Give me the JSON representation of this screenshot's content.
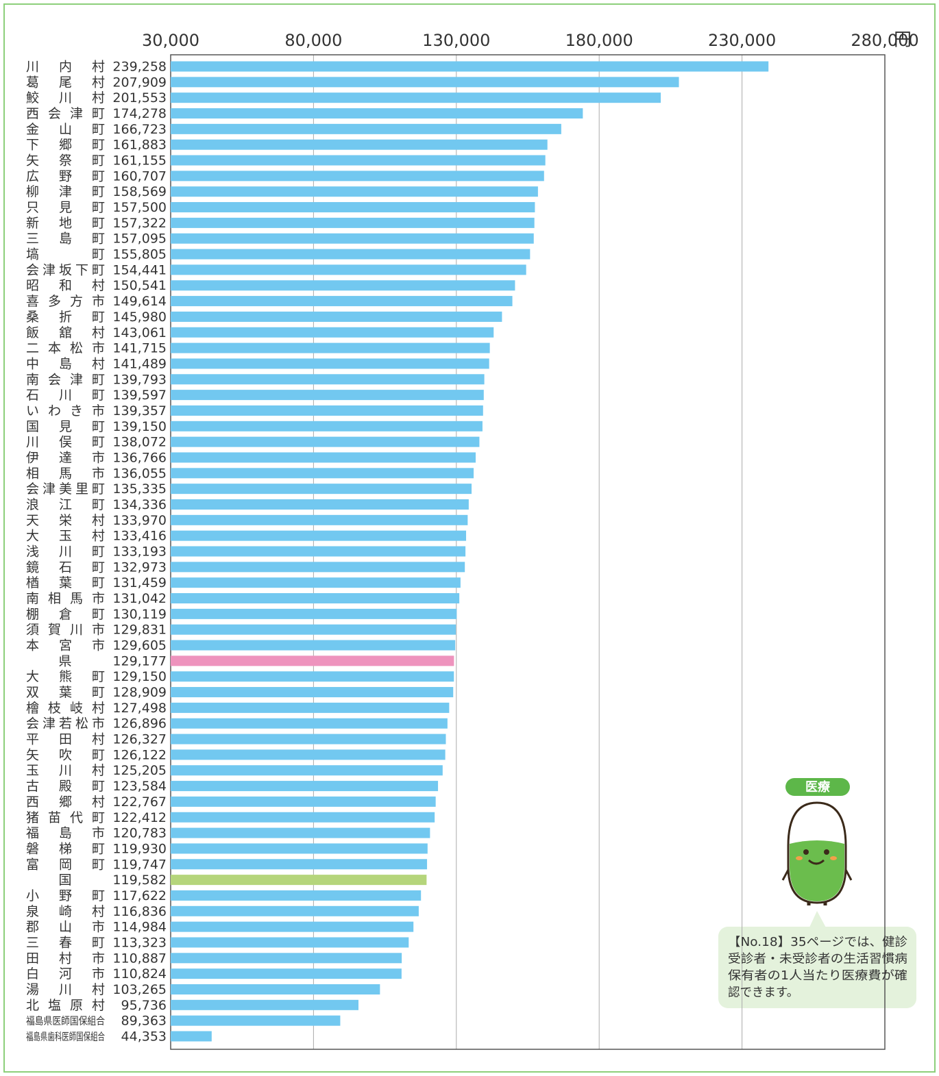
{
  "chart_data": {
    "type": "hbar",
    "unit": "円",
    "xlim": [
      30000,
      280000
    ],
    "xticks": [
      {
        "value": 30000,
        "label": "30,000"
      },
      {
        "value": 80000,
        "label": "80,000"
      },
      {
        "value": 130000,
        "label": "130,000"
      },
      {
        "value": 180000,
        "label": "180,000"
      },
      {
        "value": 230000,
        "label": "230,000"
      },
      {
        "value": 280000,
        "label": "280,000"
      }
    ],
    "grid": true,
    "categories": [
      "川内村",
      "葛尾村",
      "鮫川村",
      "西会津町",
      "金山町",
      "下郷町",
      "矢祭町",
      "広野町",
      "柳津町",
      "只見町",
      "新地町",
      "三島町",
      "塙町",
      "会津坂下町",
      "昭和村",
      "喜多方市",
      "桑折町",
      "飯舘村",
      "二本松市",
      "中島村",
      "南会津町",
      "石川町",
      "いわき市",
      "国見町",
      "川俣町",
      "伊達市",
      "相馬市",
      "会津美里町",
      "浪江町",
      "天栄村",
      "大玉村",
      "浅川町",
      "鏡石町",
      "楢葉町",
      "南相馬市",
      "棚倉町",
      "須賀川市",
      "本宮市",
      "県",
      "大熊町",
      "双葉町",
      "檜枝岐村",
      "会津若松市",
      "平田村",
      "矢吹町",
      "玉川村",
      "古殿町",
      "西郷村",
      "猪苗代町",
      "福島市",
      "磐梯町",
      "富岡町",
      "国",
      "小野町",
      "泉崎村",
      "郡山市",
      "三春町",
      "田村市",
      "白河市",
      "湯川村",
      "北塩原村",
      "福島県医師国保組合",
      "福島県歯科医師国保組合"
    ],
    "values": [
      239258,
      207909,
      201553,
      174278,
      166723,
      161883,
      161155,
      160707,
      158569,
      157500,
      157322,
      157095,
      155805,
      154441,
      150541,
      149614,
      145980,
      143061,
      141715,
      141489,
      139793,
      139597,
      139357,
      139150,
      138072,
      136766,
      136055,
      135335,
      134336,
      133970,
      133416,
      133193,
      132973,
      131459,
      131042,
      130119,
      129831,
      129605,
      129177,
      129150,
      128909,
      127498,
      126896,
      126327,
      126122,
      125205,
      123584,
      122767,
      122412,
      120783,
      119930,
      119747,
      119582,
      117622,
      116836,
      114984,
      113323,
      110887,
      110824,
      103265,
      95736,
      89363,
      44353
    ],
    "value_labels": [
      "239,258",
      "207,909",
      "201,553",
      "174,278",
      "166,723",
      "161,883",
      "161,155",
      "160,707",
      "158,569",
      "157,500",
      "157,322",
      "157,095",
      "155,805",
      "154,441",
      "150,541",
      "149,614",
      "145,980",
      "143,061",
      "141,715",
      "141,489",
      "139,793",
      "139,597",
      "139,357",
      "139,150",
      "138,072",
      "136,766",
      "136,055",
      "135,335",
      "134,336",
      "133,970",
      "133,416",
      "133,193",
      "132,973",
      "131,459",
      "131,042",
      "130,119",
      "129,831",
      "129,605",
      "129,177",
      "129,150",
      "128,909",
      "127,498",
      "126,896",
      "126,327",
      "126,122",
      "125,205",
      "123,584",
      "122,767",
      "122,412",
      "120,783",
      "119,930",
      "119,747",
      "119,582",
      "117,622",
      "116,836",
      "114,984",
      "113,323",
      "110,887",
      "110,824",
      "103,265",
      "95,736",
      "89,363",
      "44,353"
    ],
    "colors": [
      "#72c8f0",
      "#72c8f0",
      "#72c8f0",
      "#72c8f0",
      "#72c8f0",
      "#72c8f0",
      "#72c8f0",
      "#72c8f0",
      "#72c8f0",
      "#72c8f0",
      "#72c8f0",
      "#72c8f0",
      "#72c8f0",
      "#72c8f0",
      "#72c8f0",
      "#72c8f0",
      "#72c8f0",
      "#72c8f0",
      "#72c8f0",
      "#72c8f0",
      "#72c8f0",
      "#72c8f0",
      "#72c8f0",
      "#72c8f0",
      "#72c8f0",
      "#72c8f0",
      "#72c8f0",
      "#72c8f0",
      "#72c8f0",
      "#72c8f0",
      "#72c8f0",
      "#72c8f0",
      "#72c8f0",
      "#72c8f0",
      "#72c8f0",
      "#72c8f0",
      "#72c8f0",
      "#72c8f0",
      "#ee93bd",
      "#72c8f0",
      "#72c8f0",
      "#72c8f0",
      "#72c8f0",
      "#72c8f0",
      "#72c8f0",
      "#72c8f0",
      "#72c8f0",
      "#72c8f0",
      "#72c8f0",
      "#72c8f0",
      "#72c8f0",
      "#72c8f0",
      "#b5d57b",
      "#72c8f0",
      "#72c8f0",
      "#72c8f0",
      "#72c8f0",
      "#72c8f0",
      "#72c8f0",
      "#72c8f0",
      "#72c8f0",
      "#72c8f0",
      "#72c8f0"
    ]
  },
  "mascot": {
    "badge": "医療",
    "note": [
      "【No.18】35ページでは、健診",
      "受診者・未受診者の生活習慣病",
      "保有者の1人当たり医療費が確",
      "認できます。"
    ]
  }
}
